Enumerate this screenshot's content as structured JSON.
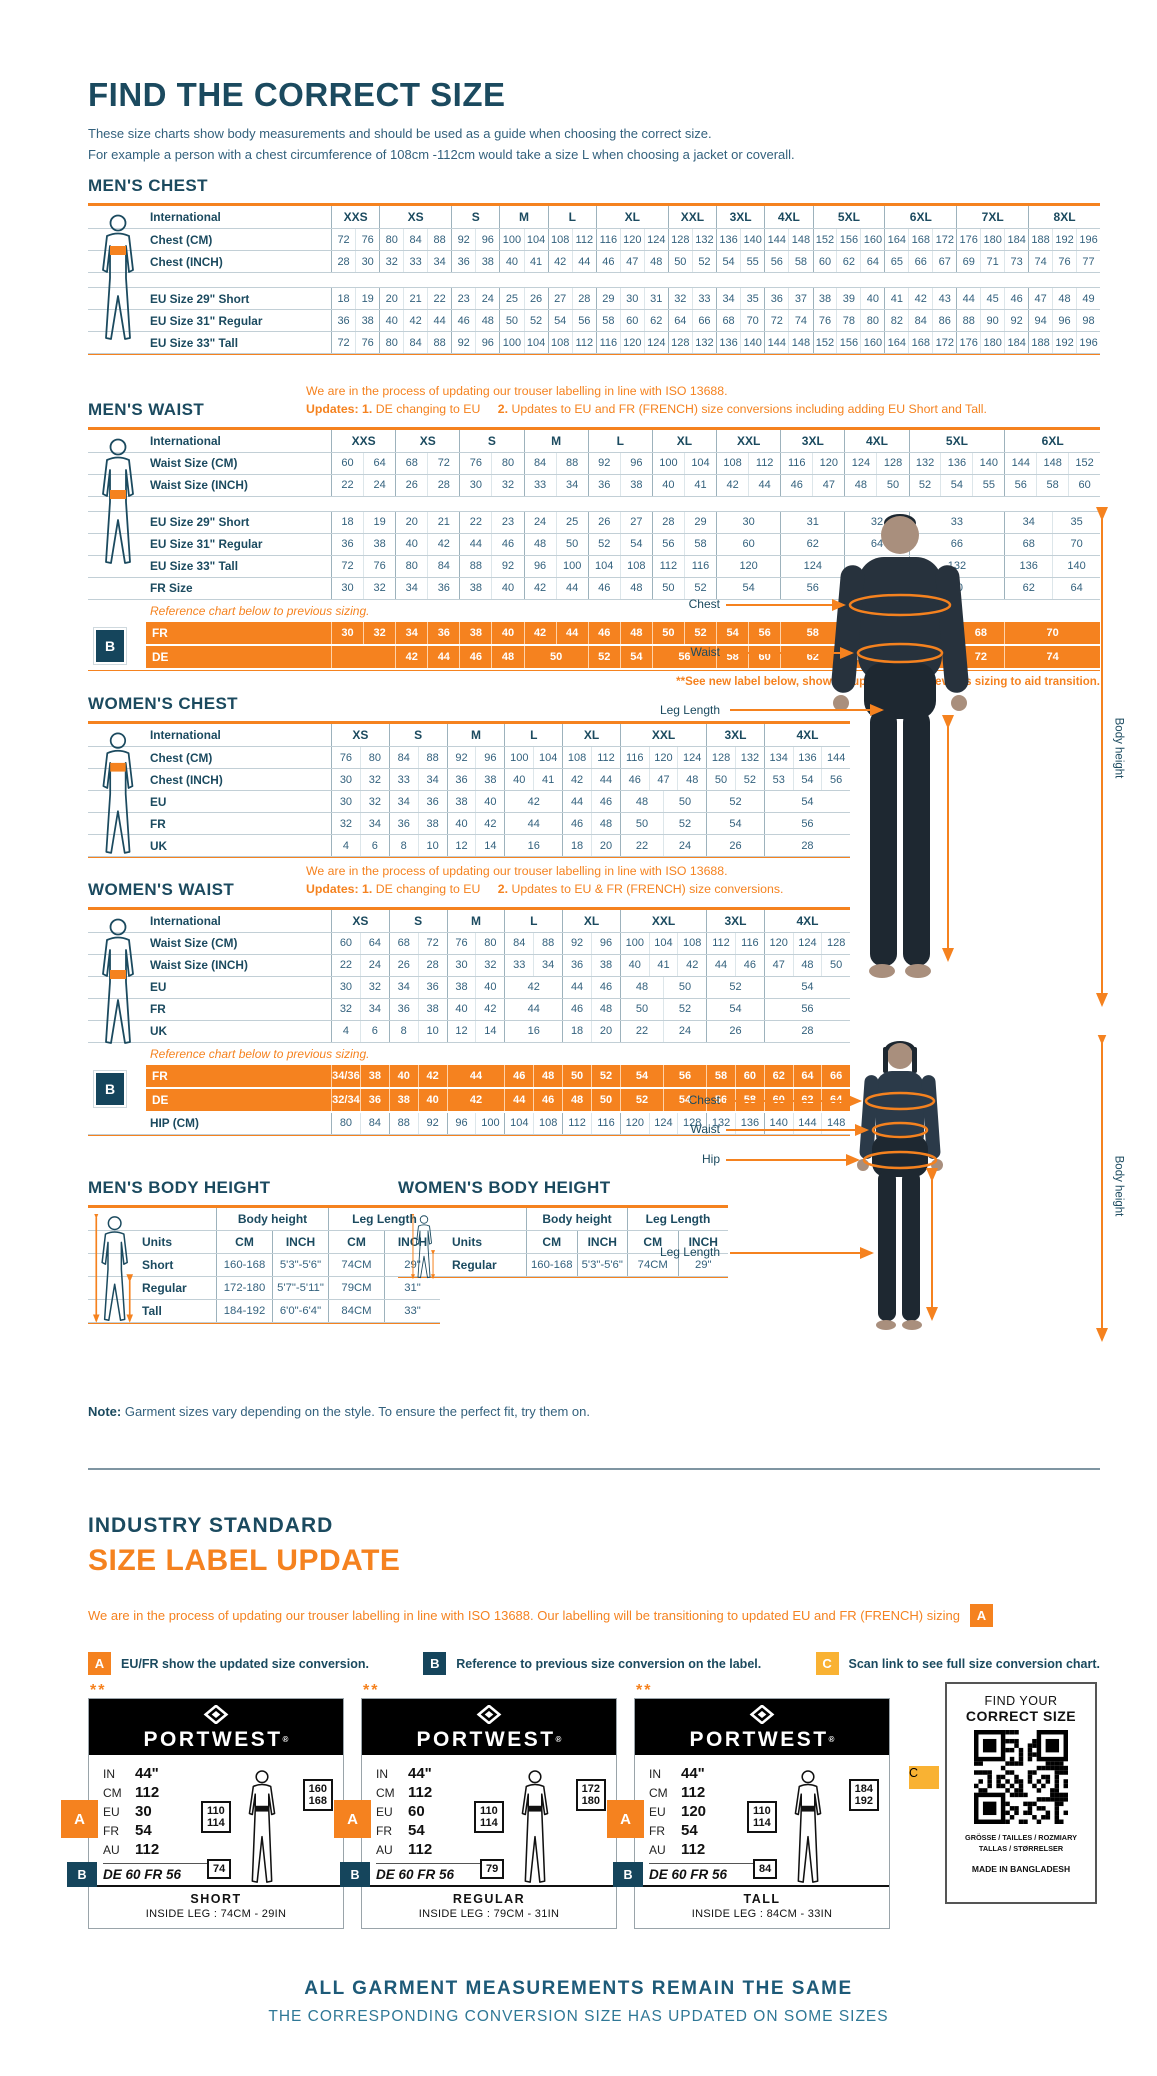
{
  "page": {
    "title": "FIND THE CORRECT SIZE",
    "subtitle1": "These size charts show body measurements and should be used as a guide when choosing the correct size.",
    "subtitle2": "For example a person with a chest circumference of 108cm -112cm would take a size L when choosing a jacket or coverall.",
    "note_label": "Note:",
    "note_text": "Garment sizes vary depending on the style. To ensure the perfect fit, try them on."
  },
  "badges": {
    "a": "A",
    "b": "B",
    "c": "C"
  },
  "mens_chest": {
    "title": "MEN'S CHEST",
    "header_label": "International",
    "sizes": [
      "XXS",
      "XS",
      "S",
      "M",
      "L",
      "XL",
      "XXL",
      "3XL",
      "4XL",
      "5XL",
      "6XL",
      "7XL",
      "8XL"
    ],
    "rows1": [
      {
        "label": "Chest (CM)",
        "cells": [
          "72 76",
          "80 84 88",
          "92 96",
          "100 104",
          "108 112",
          "116 120 124",
          "128 132",
          "136 140",
          "144 148",
          "152 156 160",
          "164 168 172",
          "176 180 184",
          "188 192 196"
        ]
      },
      {
        "label": "Chest (INCH)",
        "cells": [
          "28 30",
          "32 33 34",
          "36 38",
          "40 41",
          "42 44",
          "46 47 48",
          "50 52",
          "54 55",
          "56 58",
          "60 62 64",
          "65 66 67",
          "69 71 73",
          "74 76 77"
        ]
      }
    ],
    "rows2": [
      {
        "label": "EU Size 29\" Short",
        "cells": [
          "18 19",
          "20 21 22",
          "23 24",
          "25 26",
          "27 28",
          "29 30 31",
          "32 33",
          "34 35",
          "36 37",
          "38 39 40",
          "41 42 43",
          "44 45 46",
          "47 48 49"
        ]
      },
      {
        "label": "EU Size 31\" Regular",
        "cells": [
          "36 38",
          "40 42 44",
          "46 48",
          "50 52",
          "54 56",
          "58 60 62",
          "64 66",
          "68 70",
          "72 74",
          "76 78 80",
          "82 84 86",
          "88 90 92",
          "94 96 98"
        ]
      },
      {
        "label": "EU Size 33\" Tall",
        "cells": [
          "72 76",
          "80 84 88",
          "92 96",
          "100 104",
          "108 112",
          "116 120 124",
          "128 132",
          "136 140",
          "144 148",
          "152 156 160",
          "164 168 172",
          "176 180 184",
          "188 192 196"
        ]
      }
    ]
  },
  "mens_waist": {
    "title": "MEN'S WAIST",
    "note_line1": "We are in the process of updating our trouser labelling in line with ISO 13688.",
    "updates_label": "Updates:",
    "updates": [
      {
        "num": "1.",
        "text": "DE changing to EU"
      },
      {
        "num": "2.",
        "text": "Updates to EU and FR (FRENCH) size conversions including adding EU Short and Tall."
      }
    ],
    "header_label": "International",
    "sizes": [
      "XXS",
      "XS",
      "S",
      "M",
      "L",
      "XL",
      "XXL",
      "3XL",
      "4XL",
      "5XL",
      "6XL"
    ],
    "rows1": [
      {
        "label": "Waist Size (CM)",
        "cells": [
          "60 64",
          "68 72",
          "76 80",
          "84 88",
          "92 96",
          "100 104",
          "108 112",
          "116 120",
          "124 128",
          "132 136 140",
          "144 148 152"
        ]
      },
      {
        "label": "Waist Size (INCH)",
        "cells": [
          "22 24",
          "26 28",
          "30 32",
          "33 34",
          "36 38",
          "40 41",
          "42 44",
          "46 47",
          "48 50",
          "52 54 55",
          "56 58 60"
        ]
      }
    ],
    "rows2": [
      {
        "label": "EU Size 29\" Short",
        "cells": [
          "18 19",
          "20 21",
          "22 23",
          "24 25",
          "26 27",
          "28 29",
          "30",
          "31",
          "32",
          "33",
          "34 35"
        ]
      },
      {
        "label": "EU Size 31\" Regular",
        "cells": [
          "36 38",
          "40 42",
          "44 46",
          "48 50",
          "52 54",
          "56 58",
          "60",
          "62",
          "64",
          "66",
          "68 70"
        ]
      },
      {
        "label": "EU Size 33\" Tall",
        "cells": [
          "72 76",
          "80 84",
          "88 92",
          "96 100",
          "104 108",
          "112 116",
          "120",
          "124",
          "128",
          "132",
          "136 140"
        ]
      },
      {
        "label": "FR Size",
        "cells": [
          "30 32",
          "34 36",
          "38 40",
          "42 44",
          "46 48",
          "50 52",
          "54",
          "56",
          "58",
          "60",
          "62 64"
        ]
      }
    ],
    "reference_note": "Reference chart below to previous sizing.",
    "orange_rows": [
      {
        "label": "FR",
        "cells": [
          "30 32",
          "34 36",
          "38 40",
          "42 44",
          "46 48",
          "50 52",
          "54 56",
          "58",
          "60/62 64",
          "66 68",
          "70"
        ]
      },
      {
        "label": "DE",
        "cells": [
          "",
          "42 44",
          "46 48",
          "50",
          "52 54",
          "56",
          "58 60",
          "62",
          "64/66 68",
          "70 72",
          "74"
        ]
      }
    ],
    "footnote": "**See new label below, showing updated and previous sizing to aid transition."
  },
  "womens_chest": {
    "title": "WOMEN'S CHEST",
    "header_label": "International",
    "sizes": [
      "XS",
      "S",
      "M",
      "L",
      "XL",
      "XXL",
      "3XL",
      "4XL"
    ],
    "rows1": [
      {
        "label": "Chest (CM)",
        "cells": [
          "76 80",
          "84 88",
          "92 96",
          "100 104",
          "108 112",
          "116 120 124",
          "128 132",
          "134 136 144"
        ]
      },
      {
        "label": "Chest (INCH)",
        "cells": [
          "30 32",
          "33 34",
          "36 38",
          "40 41",
          "42 44",
          "46 47 48",
          "50 52",
          "53 54 56"
        ]
      },
      {
        "label": "EU",
        "cells": [
          "30 32",
          "34 36",
          "38 40",
          "42",
          "44 46",
          "48 50",
          "52",
          "54"
        ]
      },
      {
        "label": "FR",
        "cells": [
          "32 34",
          "36 38",
          "40 42",
          "44",
          "46 48",
          "50 52",
          "54",
          "56"
        ]
      },
      {
        "label": "UK",
        "cells": [
          "4 6",
          "8 10",
          "12 14",
          "16",
          "18 20",
          "22 24",
          "26",
          "28"
        ]
      }
    ]
  },
  "womens_waist": {
    "title": "WOMEN'S WAIST",
    "note_line1": "We are in the process of updating our trouser labelling in line with ISO 13688.",
    "updates_label": "Updates:",
    "updates": [
      {
        "num": "1.",
        "text": "DE changing to EU"
      },
      {
        "num": "2.",
        "text": "Updates to EU & FR (FRENCH) size conversions."
      }
    ],
    "header_label": "International",
    "sizes": [
      "XS",
      "S",
      "M",
      "L",
      "XL",
      "XXL",
      "3XL",
      "4XL"
    ],
    "rows1": [
      {
        "label": "Waist Size (CM)",
        "cells": [
          "60 64",
          "68 72",
          "76 80",
          "84 88",
          "92 96",
          "100 104 108",
          "112 116",
          "120 124 128"
        ]
      },
      {
        "label": "Waist Size (INCH)",
        "cells": [
          "22 24",
          "26 28",
          "30 32",
          "33 34",
          "36 38",
          "40 41 42",
          "44 46",
          "47 48 50"
        ]
      },
      {
        "label": "EU",
        "cells": [
          "30 32",
          "34 36",
          "38 40",
          "42",
          "44 46",
          "48 50",
          "52",
          "54"
        ]
      },
      {
        "label": "FR",
        "cells": [
          "32 34",
          "36 38",
          "40 42",
          "44",
          "46 48",
          "50 52",
          "54",
          "56"
        ]
      },
      {
        "label": "UK",
        "cells": [
          "4 6",
          "8 10",
          "12 14",
          "16",
          "18 20",
          "22 24",
          "26",
          "28"
        ]
      }
    ],
    "reference_note": "Reference chart below to previous sizing.",
    "orange_rows": [
      {
        "label": "FR",
        "cells": [
          "34/36 38",
          "40 42",
          "44",
          "46 48",
          "50 52",
          "54 56",
          "58 60",
          "62 64 66"
        ]
      },
      {
        "label": "DE",
        "cells": [
          "32/34 36",
          "38 40",
          "42",
          "44 46",
          "48 50",
          "52 54",
          "56 58",
          "60 62 64"
        ]
      }
    ],
    "extra_rows": [
      {
        "label": "HIP (CM)",
        "cells": [
          "80 84",
          "88 92",
          "96 100",
          "104 108",
          "112 116",
          "120 124 128",
          "132 136",
          "140 144 148"
        ]
      }
    ]
  },
  "mens_height": {
    "title": "MEN'S BODY HEIGHT",
    "group1": "Body height",
    "group2": "Leg Length",
    "units_label": "Units",
    "cm": "CM",
    "inch": "INCH",
    "rows": [
      [
        "Short",
        "160-168",
        "5'3\"-5'6\"",
        "74CM",
        "29\""
      ],
      [
        "Regular",
        "172-180",
        "5'7\"-5'11\"",
        "79CM",
        "31\""
      ],
      [
        "Tall",
        "184-192",
        "6'0\"-6'4\"",
        "84CM",
        "33\""
      ]
    ]
  },
  "womens_height": {
    "title": "WOMEN'S BODY HEIGHT",
    "group1": "Body height",
    "group2": "Leg Length",
    "units_label": "Units",
    "cm": "CM",
    "inch": "INCH",
    "rows": [
      [
        "Regular",
        "160-168",
        "5'3\"-5'6\"",
        "74CM",
        "29\""
      ]
    ]
  },
  "figures": {
    "man": {
      "chest": "Chest",
      "waist": "Waist",
      "leg": "Leg Length",
      "height": "Body height"
    },
    "woman": {
      "chest": "Chest",
      "waist": "Waist",
      "hip": "Hip",
      "leg": "Leg Length",
      "height": "Body height"
    }
  },
  "industry": {
    "heading1": "INDUSTRY STANDARD",
    "heading2": "SIZE LABEL UPDATE",
    "intro": "We are in the process of updating our trouser labelling in line with ISO 13688. Our labelling will be transitioning to updated EU and FR (FRENCH) sizing",
    "legend_a": "EU/FR show the updated size conversion.",
    "legend_b": "Reference to previous size conversion on the label.",
    "legend_c": "Scan link to see full size conversion chart.",
    "stars": "**",
    "brand": "PORTWEST",
    "reg": "®",
    "card_row_labels": {
      "in": "IN",
      "cm": "CM",
      "eu": "EU",
      "fr": "FR",
      "au": "AU"
    },
    "cards": [
      {
        "fit": "SHORT",
        "inside_leg": "INSIDE LEG : 74CM - 29IN",
        "in": "44\"",
        "cm": "112",
        "eu": "30",
        "fr": "54",
        "au": "112",
        "defr": "DE 60 FR 56",
        "waist_box": "110 114",
        "height_box": "160 168",
        "leg_box": "74"
      },
      {
        "fit": "REGULAR",
        "inside_leg": "INSIDE LEG : 79CM - 31IN",
        "in": "44\"",
        "cm": "112",
        "eu": "60",
        "fr": "54",
        "au": "112",
        "defr": "DE 60 FR 56",
        "waist_box": "110 114",
        "height_box": "172 180",
        "leg_box": "79"
      },
      {
        "fit": "TALL",
        "inside_leg": "INSIDE LEG : 84CM - 33IN",
        "in": "44\"",
        "cm": "112",
        "eu": "120",
        "fr": "54",
        "au": "112",
        "defr": "DE 60 FR 56",
        "waist_box": "110 114",
        "height_box": "184 192",
        "leg_box": "84"
      }
    ],
    "qr": {
      "line1": "FIND YOUR",
      "line2": "CORRECT SIZE",
      "langs1": "GRÖSSE / TAILLES / ROZMIARY",
      "langs2": "TALLAS / STØRRELSER",
      "made": "MADE IN BANGLADESH"
    },
    "footer1": "ALL GARMENT MEASUREMENTS REMAIN THE SAME",
    "footer2": "THE CORRESPONDING CONVERSION SIZE HAS UPDATED ON SOME SIZES"
  }
}
